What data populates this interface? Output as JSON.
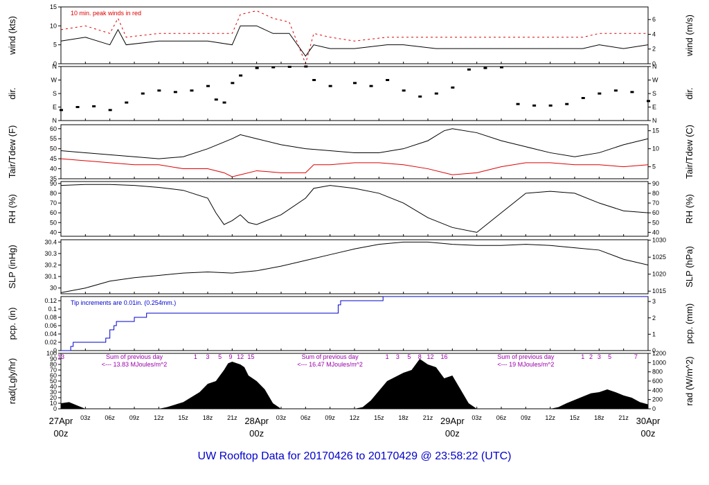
{
  "colors": {
    "primary": "#000000",
    "secondary": "#dd0000",
    "precip": "#0000cc",
    "solar_note": "#9900aa",
    "date": "#ee0000",
    "title": "#0000cc"
  },
  "footer": {
    "title": "UW Rooftop Data for 20170426  to  20170429 @ 23:58:22  (UTC)"
  },
  "chart_data": {
    "type": "line",
    "time_axis": {
      "range_hours": [
        0,
        72
      ],
      "hour_tick_labels": [
        "03z",
        "06z",
        "09z",
        "12z",
        "15z",
        "18z",
        "21z",
        "28Apr",
        "03z",
        "06z",
        "09z",
        "12z",
        "15z",
        "18z",
        "21z",
        "29Apr",
        "03z",
        "06z",
        "09z",
        "12z",
        "15z",
        "18z",
        "21z"
      ],
      "hour_tick_values": [
        3,
        6,
        9,
        12,
        15,
        18,
        21,
        24,
        27,
        30,
        33,
        36,
        39,
        42,
        45,
        48,
        51,
        54,
        57,
        60,
        63,
        66,
        69
      ],
      "day_labels": [
        {
          "date": "27Apr",
          "sub": "00z",
          "hour": 0
        },
        {
          "date": "28Apr",
          "sub": "00z",
          "hour": 24
        },
        {
          "date": "29Apr",
          "sub": "00z",
          "hour": 48
        },
        {
          "date": "30Apr",
          "sub": "00z",
          "hour": 72
        }
      ]
    },
    "panels": [
      {
        "id": "wind",
        "ylabel_left": "wind (kts)",
        "ylabel_right": "wind (m/s)",
        "ylim": [
          0,
          15
        ],
        "left_ticks": [
          0,
          5,
          10,
          15
        ],
        "right_ticks": [
          0,
          2,
          4,
          6
        ],
        "right_scale": 0.5144,
        "annotation": "10 min. peak winds in red",
        "series": [
          {
            "name": "wind speed",
            "color": "#000000",
            "x": [
              0,
              3,
              6,
              7,
              8,
              12,
              16,
              18,
              21,
              22,
              24,
              26,
              28,
              30,
              31,
              33,
              36,
              40,
              42,
              46,
              48,
              52,
              55,
              58,
              60,
              64,
              66,
              69,
              72
            ],
            "y": [
              6,
              7,
              5,
              9,
              5,
              6,
              6,
              6,
              5,
              10,
              10,
              8,
              8,
              2,
              5,
              4,
              4,
              5,
              5,
              4,
              4,
              4,
              4,
              4,
              4,
              4,
              5,
              4,
              5
            ]
          },
          {
            "name": "10 min peak",
            "color": "#dd0000",
            "x": [
              0,
              3,
              6,
              7,
              8,
              12,
              16,
              18,
              21,
              22,
              24,
              26,
              28,
              30,
              31,
              33,
              36,
              40,
              42,
              46,
              48,
              52,
              55,
              58,
              60,
              64,
              66,
              69,
              72
            ],
            "y": [
              9,
              10,
              8,
              12,
              7,
              8,
              8,
              8,
              8,
              13,
              14,
              12,
              11,
              0,
              8,
              7,
              6,
              7,
              7,
              7,
              7,
              7,
              7,
              7,
              7,
              7,
              8,
              8,
              8
            ]
          }
        ]
      },
      {
        "id": "dir",
        "ylabel_left": "dir.",
        "ylabel_right": "dir.",
        "ylim": [
          0,
          360
        ],
        "left_tick_labels": [
          "N",
          "E",
          "S",
          "W",
          "N"
        ],
        "left_ticks": [
          0,
          90,
          180,
          270,
          360
        ],
        "series": [
          {
            "name": "wind direction",
            "color": "#000000",
            "x": [
              0,
              2,
              4,
              6,
              8,
              10,
              12,
              14,
              16,
              18,
              19,
              20,
              21,
              22,
              24,
              26,
              28,
              30,
              31,
              33,
              36,
              38,
              40,
              42,
              44,
              46,
              48,
              50,
              52,
              54,
              56,
              58,
              60,
              62,
              64,
              66,
              68,
              70,
              72
            ],
            "y": [
              70,
              90,
              95,
              70,
              120,
              180,
              200,
              190,
              200,
              230,
              140,
              120,
              250,
              300,
              350,
              355,
              358,
              360,
              270,
              230,
              250,
              230,
              270,
              200,
              160,
              180,
              220,
              340,
              350,
              355,
              110,
              100,
              100,
              110,
              150,
              180,
              200,
              190,
              130
            ]
          }
        ]
      },
      {
        "id": "temp",
        "ylabel_left": "Tair/Tdew (F)",
        "ylabel_right": "Tair/Tdew (C)",
        "ylim": [
          35,
          62
        ],
        "left_ticks": [
          35,
          40,
          45,
          50,
          55,
          60
        ],
        "right_ticks": [
          5,
          10,
          15
        ],
        "series": [
          {
            "name": "Tair",
            "color": "#000000",
            "x": [
              0,
              3,
              6,
              9,
              12,
              15,
              18,
              21,
              22,
              24,
              27,
              30,
              33,
              36,
              39,
              42,
              45,
              47,
              48,
              51,
              54,
              57,
              60,
              63,
              66,
              69,
              72
            ],
            "y": [
              49,
              48,
              47,
              46,
              45,
              46,
              50,
              55,
              57,
              55,
              52,
              50,
              49,
              48,
              48,
              50,
              54,
              59,
              60,
              58,
              54,
              51,
              48,
              46,
              48,
              52,
              55
            ]
          },
          {
            "name": "Tdew",
            "color": "#dd0000",
            "x": [
              0,
              3,
              6,
              9,
              12,
              15,
              18,
              20,
              21,
              22,
              24,
              27,
              30,
              31,
              33,
              36,
              39,
              42,
              45,
              48,
              51,
              54,
              57,
              60,
              63,
              66,
              69,
              72
            ],
            "y": [
              45,
              44,
              43,
              42,
              42,
              40,
              40,
              38,
              36,
              37,
              39,
              38,
              38,
              42,
              42,
              43,
              43,
              42,
              40,
              37,
              38,
              41,
              43,
              43,
              42,
              42,
              41,
              42
            ]
          }
        ]
      },
      {
        "id": "rh",
        "ylabel_left": "RH (%)",
        "ylabel_right": "RH (%)",
        "ylim": [
          36,
          92
        ],
        "left_ticks": [
          40,
          50,
          60,
          70,
          80,
          90
        ],
        "right_ticks": [
          40,
          50,
          60,
          70,
          80,
          90
        ],
        "series": [
          {
            "name": "relative humidity",
            "color": "#000000",
            "x": [
              0,
              3,
              6,
              9,
              12,
              15,
              18,
              19,
              20,
              21,
              22,
              23,
              24,
              27,
              30,
              31,
              33,
              36,
              39,
              42,
              45,
              48,
              51,
              54,
              57,
              60,
              63,
              66,
              69,
              72
            ],
            "y": [
              88,
              89,
              89,
              88,
              86,
              83,
              75,
              60,
              48,
              52,
              58,
              50,
              48,
              58,
              75,
              85,
              88,
              85,
              80,
              70,
              55,
              45,
              40,
              60,
              80,
              82,
              80,
              70,
              62,
              60
            ]
          }
        ]
      },
      {
        "id": "slp",
        "ylabel_left": "SLP (inHg)",
        "ylabel_right": "SLP (hPa)",
        "ylim": [
          29.95,
          30.42
        ],
        "left_ticks": [
          30.0,
          30.1,
          30.2,
          30.3,
          30.4
        ],
        "right_ticks": [
          1015,
          1020,
          1025,
          1030
        ],
        "series": [
          {
            "name": "sea level pressure",
            "color": "#000000",
            "x": [
              0,
              3,
              6,
              9,
              12,
              15,
              18,
              21,
              24,
              27,
              30,
              33,
              36,
              39,
              42,
              45,
              48,
              51,
              54,
              57,
              60,
              63,
              66,
              69,
              72
            ],
            "y": [
              29.96,
              30.0,
              30.06,
              30.09,
              30.11,
              30.13,
              30.14,
              30.13,
              30.15,
              30.19,
              30.24,
              30.29,
              30.34,
              30.38,
              30.4,
              30.4,
              30.38,
              30.37,
              30.37,
              30.38,
              30.37,
              30.35,
              30.33,
              30.25,
              30.2
            ]
          }
        ]
      },
      {
        "id": "pcp",
        "ylabel_left": "pcp. (in)",
        "ylabel_right": "pcp. (mm)",
        "ylim": [
          0,
          0.13
        ],
        "left_ticks": [
          0.0,
          0.02,
          0.04,
          0.06,
          0.08,
          0.1,
          0.12
        ],
        "right_ticks": [
          0,
          1,
          2,
          3
        ],
        "annotation": "Tip increments are 0.01in. (0.254mm.)",
        "series": [
          {
            "name": "accumulated precipitation",
            "color": "#0000cc",
            "step": true,
            "x": [
              0,
              1.2,
              1.5,
              5.5,
              6,
              6.5,
              6.8,
              9,
              10.5,
              34,
              34.3,
              39.5,
              72
            ],
            "y": [
              0,
              0.01,
              0.02,
              0.03,
              0.05,
              0.06,
              0.07,
              0.08,
              0.09,
              0.11,
              0.12,
              0.13,
              0.13
            ]
          }
        ]
      },
      {
        "id": "rad",
        "ylabel_left": "rad(Lgly/hr)",
        "ylabel_right": "rad (W/m^2)",
        "ylim": [
          0,
          100
        ],
        "left_ticks": [
          0,
          10,
          20,
          30,
          40,
          50,
          60,
          70,
          80,
          90,
          100
        ],
        "right_ticks": [
          0,
          200,
          400,
          600,
          800,
          1000,
          1200
        ],
        "day_notes": [
          {
            "line1": "Sum of previous day",
            "line2": "<--- 13.83 MJoules/m^2",
            "hour": 9
          },
          {
            "line1": "Sum of previous day",
            "line2": "<--- 16.47 MJoules/m^2",
            "hour": 33
          },
          {
            "line1": "Sum of previous day",
            "line2": "<--- 19 MJoules/m^2",
            "hour": 57
          }
        ],
        "uv_labels": [
          {
            "text": "13",
            "hour": 0
          },
          {
            "text": "1",
            "hour": 16.5
          },
          {
            "text": "3",
            "hour": 18
          },
          {
            "text": "5",
            "hour": 19.5
          },
          {
            "text": "9",
            "hour": 20.8
          },
          {
            "text": "12",
            "hour": 22
          },
          {
            "text": "15",
            "hour": 23.3
          },
          {
            "text": "1",
            "hour": 40
          },
          {
            "text": "3",
            "hour": 41.3
          },
          {
            "text": "5",
            "hour": 42.7
          },
          {
            "text": "8",
            "hour": 44
          },
          {
            "text": "12",
            "hour": 45.3
          },
          {
            "text": "16",
            "hour": 47
          },
          {
            "text": "1",
            "hour": 64
          },
          {
            "text": "2",
            "hour": 65
          },
          {
            "text": "3",
            "hour": 66
          },
          {
            "text": "5",
            "hour": 67.3
          },
          {
            "text": "7",
            "hour": 70.5
          }
        ],
        "series": [
          {
            "name": "solar radiation",
            "color": "#000000",
            "fill": true,
            "x": [
              0,
              1,
              2,
              3,
              12,
              13,
              15,
              17,
              18,
              19,
              20,
              20.5,
              21,
              22,
              22.5,
              23,
              24,
              25,
              26,
              27,
              36,
              37,
              38,
              40,
              42,
              43,
              44,
              45,
              46,
              47,
              48,
              49,
              50,
              51,
              60,
              61,
              62,
              64,
              65,
              66,
              67,
              68,
              69,
              70,
              71,
              72
            ],
            "y": [
              10,
              12,
              6,
              0,
              0,
              3,
              12,
              30,
              45,
              50,
              70,
              82,
              85,
              80,
              75,
              60,
              50,
              35,
              10,
              0,
              0,
              3,
              15,
              50,
              65,
              70,
              90,
              80,
              75,
              55,
              60,
              35,
              10,
              0,
              0,
              3,
              10,
              22,
              28,
              30,
              35,
              30,
              24,
              20,
              12,
              8
            ]
          }
        ]
      }
    ]
  }
}
